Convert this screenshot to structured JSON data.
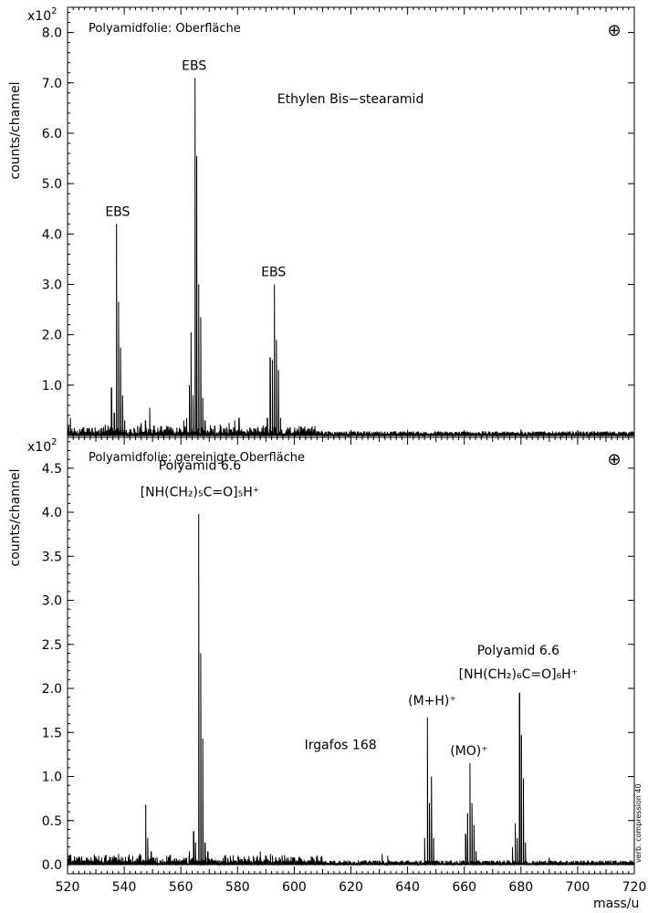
{
  "chart_data": [
    {
      "type": "line",
      "title": "Polyamidfolie:  Oberfläche",
      "ylabel": "counts/channel",
      "exponent_label": "x10",
      "exponent": "2",
      "xlabel": "",
      "xlim": [
        520,
        720
      ],
      "ylim": [
        0,
        8.5
      ],
      "y_ticks": [
        1.0,
        2.0,
        3.0,
        4.0,
        5.0,
        6.0,
        7.0,
        8.0
      ],
      "y_tick_labels": [
        "1.0",
        "2.0",
        "3.0",
        "4.0",
        "5.0",
        "6.0",
        "7.0",
        "8.0"
      ],
      "grid": false,
      "marker_symbol": "⊕",
      "peaks": [
        {
          "x": 521.0,
          "y": 0.35
        },
        {
          "x": 535.5,
          "y": 0.95
        },
        {
          "x": 536.5,
          "y": 0.45
        },
        {
          "x": 537.3,
          "y": 4.2
        },
        {
          "x": 538.0,
          "y": 2.65
        },
        {
          "x": 538.7,
          "y": 1.75
        },
        {
          "x": 539.4,
          "y": 0.8
        },
        {
          "x": 540.2,
          "y": 0.3
        },
        {
          "x": 546.0,
          "y": 0.25
        },
        {
          "x": 547.5,
          "y": 0.3
        },
        {
          "x": 549.0,
          "y": 0.55
        },
        {
          "x": 550.5,
          "y": 0.2
        },
        {
          "x": 561.0,
          "y": 0.3
        },
        {
          "x": 562.0,
          "y": 0.35
        },
        {
          "x": 563.0,
          "y": 1.0
        },
        {
          "x": 563.6,
          "y": 2.05
        },
        {
          "x": 564.3,
          "y": 0.8
        },
        {
          "x": 565.0,
          "y": 7.1
        },
        {
          "x": 565.6,
          "y": 5.55
        },
        {
          "x": 566.3,
          "y": 3.0
        },
        {
          "x": 567.0,
          "y": 2.35
        },
        {
          "x": 567.7,
          "y": 0.75
        },
        {
          "x": 568.5,
          "y": 0.3
        },
        {
          "x": 572.0,
          "y": 0.2
        },
        {
          "x": 577.0,
          "y": 0.25
        },
        {
          "x": 579.0,
          "y": 0.3
        },
        {
          "x": 580.5,
          "y": 0.35
        },
        {
          "x": 589.0,
          "y": 0.2
        },
        {
          "x": 590.5,
          "y": 0.35
        },
        {
          "x": 591.5,
          "y": 1.55
        },
        {
          "x": 592.3,
          "y": 1.5
        },
        {
          "x": 593.0,
          "y": 3.0
        },
        {
          "x": 593.7,
          "y": 1.9
        },
        {
          "x": 594.4,
          "y": 1.3
        },
        {
          "x": 595.2,
          "y": 0.35
        },
        {
          "x": 605.0,
          "y": 0.15
        },
        {
          "x": 607.0,
          "y": 0.12
        },
        {
          "x": 680.0,
          "y": 0.12
        }
      ],
      "annotations": [
        {
          "text": "EBS",
          "x": 538,
          "y": 4.25
        },
        {
          "text": "EBS",
          "x": 565,
          "y": 7.15
        },
        {
          "text": "Ethylen Bis−stearamid",
          "x": 594,
          "y": 6.6
        },
        {
          "text": "EBS",
          "x": 593,
          "y": 3.05
        }
      ]
    },
    {
      "type": "line",
      "title": "Polyamidfolie:  gereinigte Oberfläche",
      "ylabel": "counts/channel",
      "exponent_label": "x10",
      "exponent": "2",
      "xlabel": "mass/u",
      "xlim": [
        520,
        720
      ],
      "ylim": [
        0,
        4.85
      ],
      "x_ticks": [
        520,
        540,
        560,
        580,
        600,
        620,
        640,
        660,
        680,
        700,
        720
      ],
      "x_tick_labels": [
        "520",
        "540",
        "560",
        "580",
        "600",
        "620",
        "640",
        "660",
        "680",
        "700",
        "720"
      ],
      "y_ticks": [
        0.0,
        0.5,
        1.0,
        1.5,
        2.0,
        2.5,
        3.0,
        3.5,
        4.0,
        4.5
      ],
      "y_tick_labels": [
        "0.0",
        "0.5",
        "1.0",
        "1.5",
        "2.0",
        "2.5",
        "3.0",
        "3.5",
        "4.0",
        "4.5"
      ],
      "grid": false,
      "marker_symbol": "⊕",
      "side_note": "verb. compression 40",
      "peaks": [
        {
          "x": 531.0,
          "y": 0.1
        },
        {
          "x": 538.0,
          "y": 0.12
        },
        {
          "x": 543.0,
          "y": 0.1
        },
        {
          "x": 545.5,
          "y": 0.12
        },
        {
          "x": 547.6,
          "y": 0.68
        },
        {
          "x": 548.3,
          "y": 0.3
        },
        {
          "x": 549.5,
          "y": 0.15
        },
        {
          "x": 555.0,
          "y": 0.1
        },
        {
          "x": 563.0,
          "y": 0.15
        },
        {
          "x": 564.5,
          "y": 0.38
        },
        {
          "x": 565.2,
          "y": 0.25
        },
        {
          "x": 566.3,
          "y": 3.98
        },
        {
          "x": 567.0,
          "y": 2.4
        },
        {
          "x": 567.7,
          "y": 1.43
        },
        {
          "x": 568.5,
          "y": 0.25
        },
        {
          "x": 569.5,
          "y": 0.15
        },
        {
          "x": 588.0,
          "y": 0.15
        },
        {
          "x": 590.0,
          "y": 0.1
        },
        {
          "x": 631.0,
          "y": 0.12
        },
        {
          "x": 633.0,
          "y": 0.1
        },
        {
          "x": 646.0,
          "y": 0.3
        },
        {
          "x": 647.0,
          "y": 1.67
        },
        {
          "x": 647.7,
          "y": 0.7
        },
        {
          "x": 648.4,
          "y": 1.0
        },
        {
          "x": 649.2,
          "y": 0.3
        },
        {
          "x": 660.5,
          "y": 0.35
        },
        {
          "x": 661.2,
          "y": 0.58
        },
        {
          "x": 662.0,
          "y": 1.15
        },
        {
          "x": 662.7,
          "y": 0.7
        },
        {
          "x": 663.4,
          "y": 0.45
        },
        {
          "x": 664.2,
          "y": 0.15
        },
        {
          "x": 677.0,
          "y": 0.2
        },
        {
          "x": 678.0,
          "y": 0.47
        },
        {
          "x": 678.7,
          "y": 0.3
        },
        {
          "x": 679.5,
          "y": 1.95
        },
        {
          "x": 680.2,
          "y": 1.47
        },
        {
          "x": 680.9,
          "y": 0.98
        },
        {
          "x": 681.6,
          "y": 0.25
        },
        {
          "x": 690.0,
          "y": 0.08
        }
      ],
      "annotations": [
        {
          "text": "Polyamid 6.6",
          "x": 567,
          "y": 4.4
        },
        {
          "text": "[NH(CH₂)₅C=O]₅H⁺",
          "x": 567,
          "y": 4.1
        },
        {
          "text": "(M+H)⁺",
          "x": 648,
          "y": 1.75
        },
        {
          "text": "Irgafos 168",
          "x": 631,
          "y": 1.35
        },
        {
          "text": "(MO)⁺",
          "x": 662,
          "y": 1.18
        },
        {
          "text": "Polyamid 6.6",
          "x": 681,
          "y": 2.3
        },
        {
          "text": "[NH(CH₂)₆C=O]₆H⁺",
          "x": 681,
          "y": 2.03
        }
      ]
    }
  ]
}
